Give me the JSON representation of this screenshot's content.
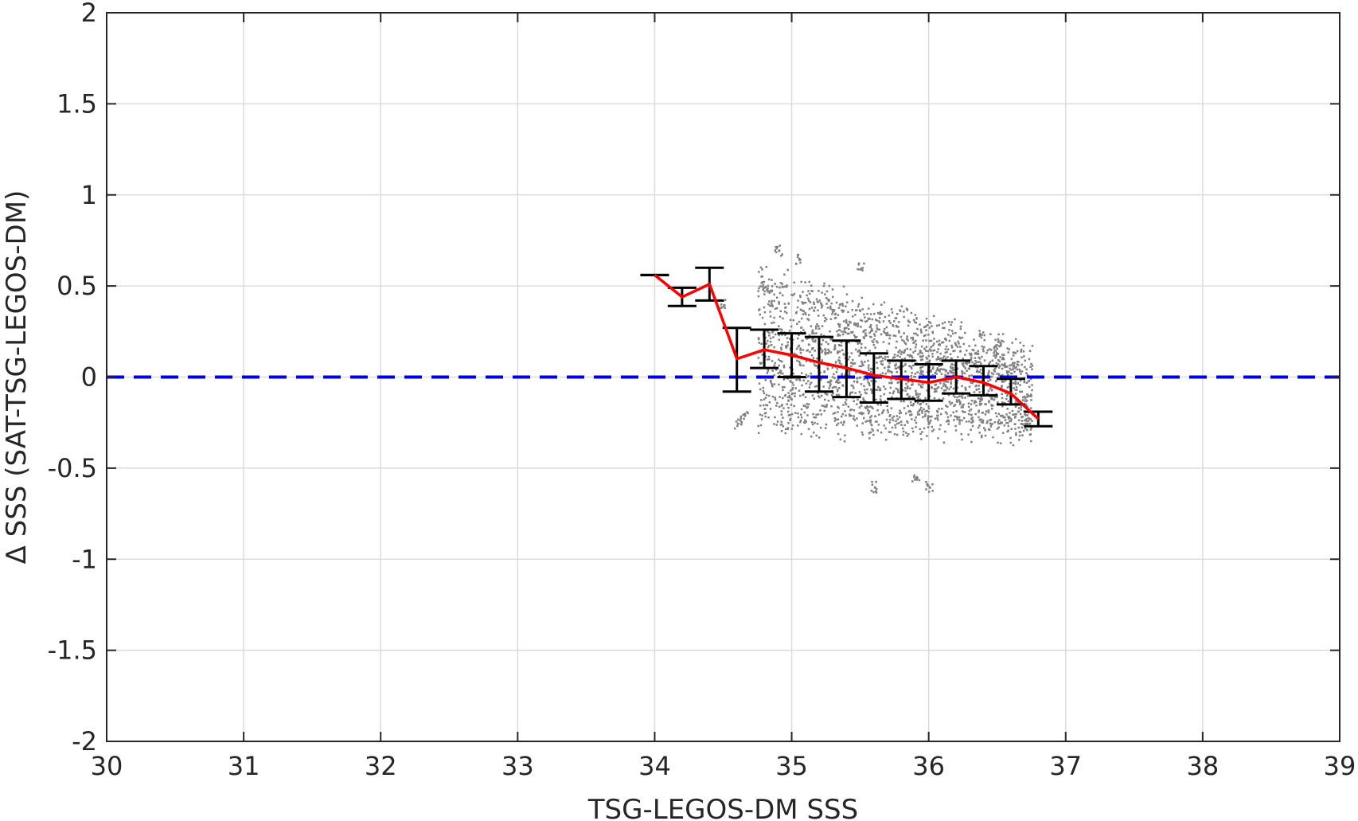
{
  "chart_data": {
    "type": "scatter",
    "title": "",
    "xlabel": "TSG-LEGOS-DM SSS",
    "ylabel": "Δ SSS (SAT-TSG-LEGOS-DM)",
    "xlim": [
      30,
      39
    ],
    "ylim": [
      -2,
      2
    ],
    "x_ticks": [
      "30",
      "31",
      "32",
      "33",
      "34",
      "35",
      "36",
      "37",
      "38",
      "39"
    ],
    "y_ticks": [
      "2",
      "1.5",
      "1",
      "0.5",
      "0",
      "-0.5",
      "-1",
      "-1.5",
      "-2"
    ],
    "grid": true,
    "reference_line": {
      "y": 0,
      "style": "dashed",
      "color": "#0000e6"
    },
    "scatter": {
      "color": "#808080",
      "description_points": [
        {
          "x": 34.5,
          "y": 0.4
        },
        {
          "x": 34.6,
          "y": -0.25
        },
        {
          "x": 34.65,
          "y": -0.2
        },
        {
          "x": 34.8,
          "y": 0.5
        },
        {
          "x": 34.9,
          "y": 0.7
        },
        {
          "x": 35.05,
          "y": 0.65
        },
        {
          "x": 35.5,
          "y": 0.6
        },
        {
          "x": 35.6,
          "y": -0.6
        },
        {
          "x": 35.9,
          "y": -0.55
        },
        {
          "x": 36.0,
          "y": -0.6
        },
        {
          "x": 36.5,
          "y": 0.2
        },
        {
          "x": 36.7,
          "y": -0.25
        }
      ]
    },
    "series": [
      {
        "type": "line_errorbar",
        "color": "#ff0000",
        "errorbar_color": "#000000",
        "x": [
          34.0,
          34.2,
          34.4,
          34.6,
          34.8,
          35.0,
          35.2,
          35.4,
          35.6,
          35.8,
          36.0,
          36.2,
          36.4,
          36.6,
          36.8
        ],
        "y": [
          0.56,
          0.44,
          0.51,
          0.1,
          0.15,
          0.12,
          0.08,
          0.05,
          0.01,
          -0.01,
          -0.03,
          0.0,
          -0.03,
          -0.09,
          -0.23
        ],
        "err_low": [
          0.56,
          0.39,
          0.42,
          -0.08,
          0.05,
          0.0,
          -0.08,
          -0.11,
          -0.14,
          -0.12,
          -0.13,
          -0.09,
          -0.1,
          -0.15,
          -0.27
        ],
        "err_high": [
          0.56,
          0.49,
          0.6,
          0.27,
          0.26,
          0.24,
          0.22,
          0.2,
          0.13,
          0.09,
          0.07,
          0.09,
          0.06,
          -0.01,
          -0.19
        ]
      }
    ]
  }
}
